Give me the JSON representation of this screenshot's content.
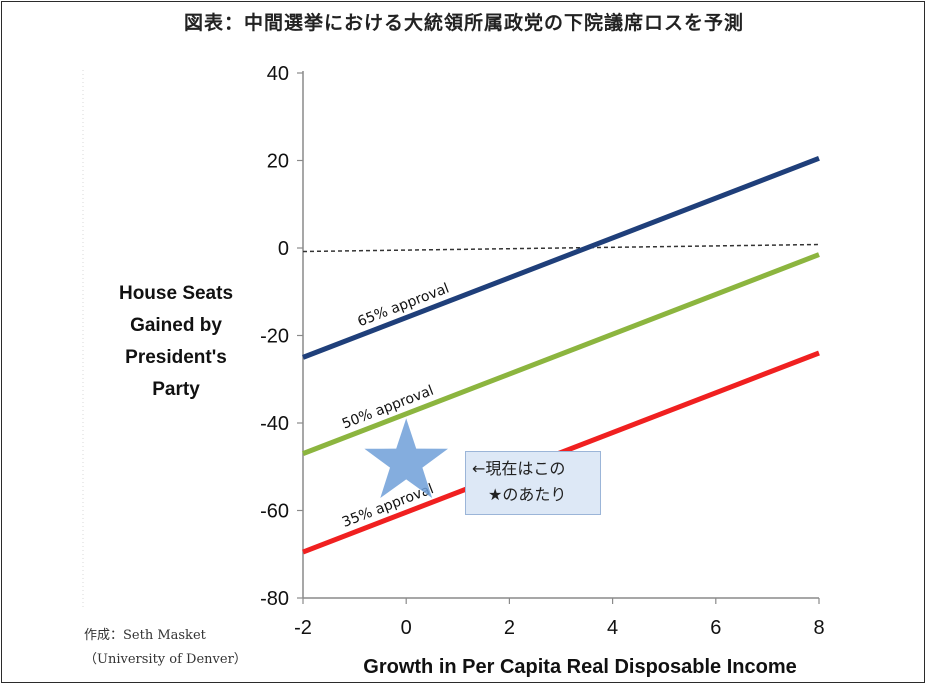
{
  "title": "図表：中間選挙における大統領所属政党の下院議席ロスを予測",
  "credit": {
    "line1": "作成：Seth Masket",
    "line2": "（University of Denver）"
  },
  "annotation": {
    "line1": "←現在はこの",
    "line2": "★のあたり"
  },
  "chart_data": {
    "type": "line",
    "title": "",
    "xlabel": "Growth in Per Capita Real Disposable Income",
    "ylabel": "House Seats Gained by President's Party",
    "xlim": [
      -2,
      8
    ],
    "ylim": [
      -80,
      40
    ],
    "x_ticks": [
      "-2",
      "0",
      "2",
      "4",
      "6",
      "8"
    ],
    "y_ticks": [
      "40",
      "20",
      "0",
      "-20",
      "-40",
      "-60",
      "-80"
    ],
    "grid": false,
    "series": [
      {
        "name": "65% approval",
        "color": "#1f3f7a",
        "x": [
          -2,
          8
        ],
        "y": [
          -25,
          20.5
        ]
      },
      {
        "name": "50% approval",
        "color": "#8cb53f",
        "x": [
          -2,
          8
        ],
        "y": [
          -47,
          -1.5
        ]
      },
      {
        "name": "35% approval",
        "color": "#f02020",
        "x": [
          -2,
          8
        ],
        "y": [
          -69.5,
          -24
        ]
      }
    ],
    "reference_line": {
      "style": "dashed",
      "color": "#333333",
      "x": [
        -2,
        8
      ],
      "y": [
        -0.8,
        0.8
      ]
    },
    "marker": {
      "shape": "star",
      "color": "#6f9fd8",
      "x": 0,
      "y": -49
    }
  }
}
